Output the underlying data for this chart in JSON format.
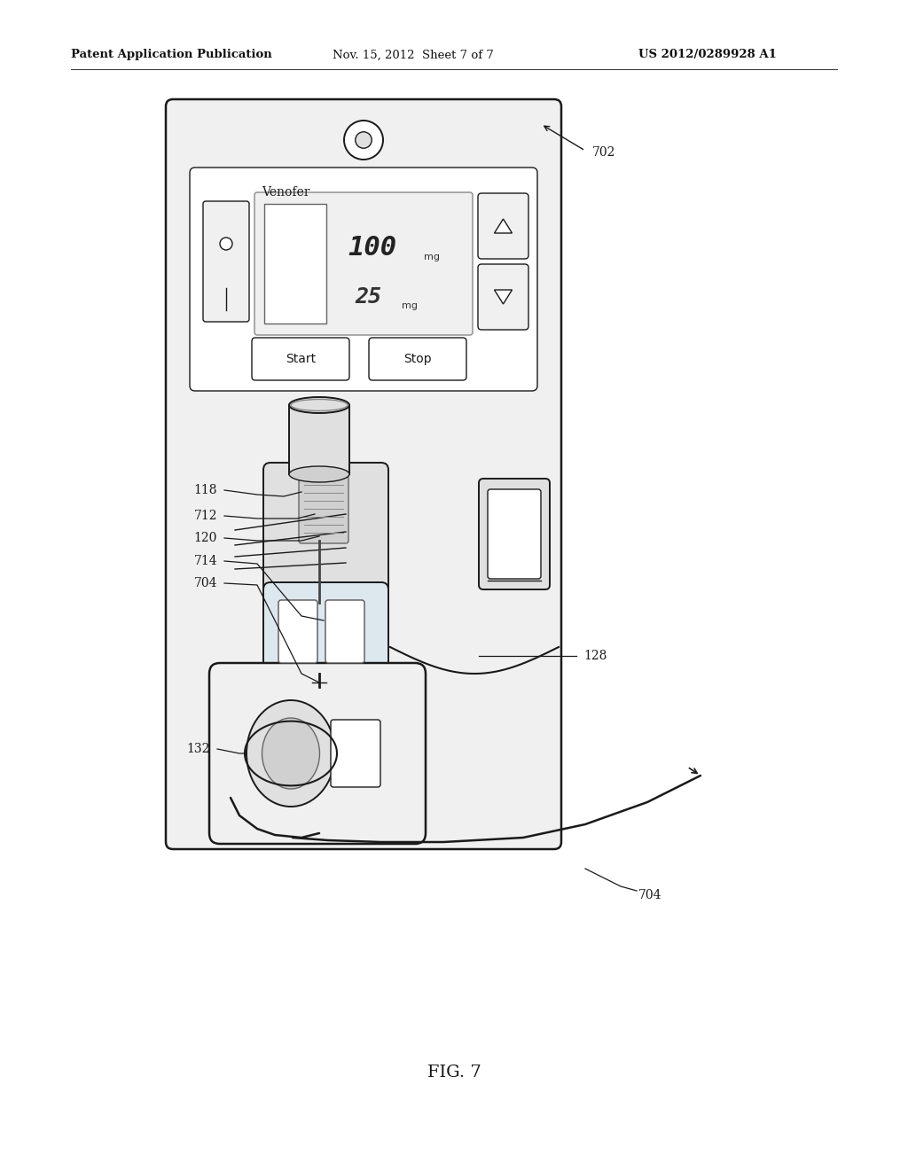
{
  "bg_color": "#ffffff",
  "header_left": "Patent Application Publication",
  "header_mid": "Nov. 15, 2012  Sheet 7 of 7",
  "header_right": "US 2012/0289928 A1",
  "fig_label": "FIG. 7",
  "line_color": "#1a1a1a",
  "fill_white": "#ffffff",
  "fill_light": "#f0f0f0",
  "fill_mid": "#e0e0e0",
  "fill_gray": "#d0d0d0"
}
